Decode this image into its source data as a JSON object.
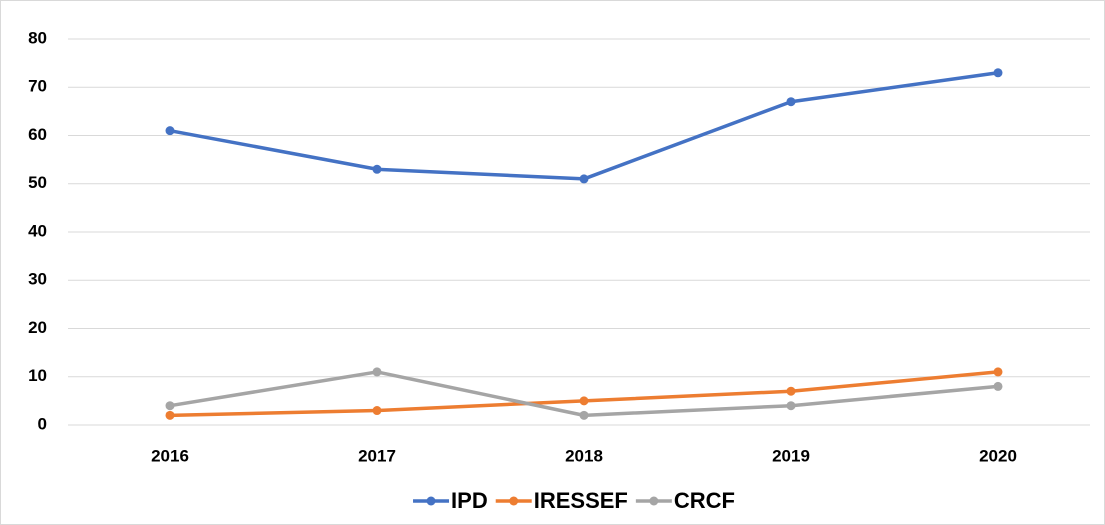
{
  "chart_data": {
    "type": "line",
    "categories": [
      "2016",
      "2017",
      "2018",
      "2019",
      "2020"
    ],
    "series": [
      {
        "name": "IPD",
        "color": "#4472c4",
        "values": [
          61,
          53,
          51,
          67,
          73
        ]
      },
      {
        "name": "IRESSEF",
        "color": "#ed7d31",
        "values": [
          2,
          3,
          5,
          7,
          11
        ]
      },
      {
        "name": "CRCF",
        "color": "#a5a5a5",
        "values": [
          4,
          11,
          2,
          4,
          8
        ]
      }
    ],
    "ylim": [
      0,
      80
    ],
    "yticks": [
      0,
      10,
      20,
      30,
      40,
      50,
      60,
      70,
      80
    ],
    "grid": true,
    "legend": "bottom"
  }
}
